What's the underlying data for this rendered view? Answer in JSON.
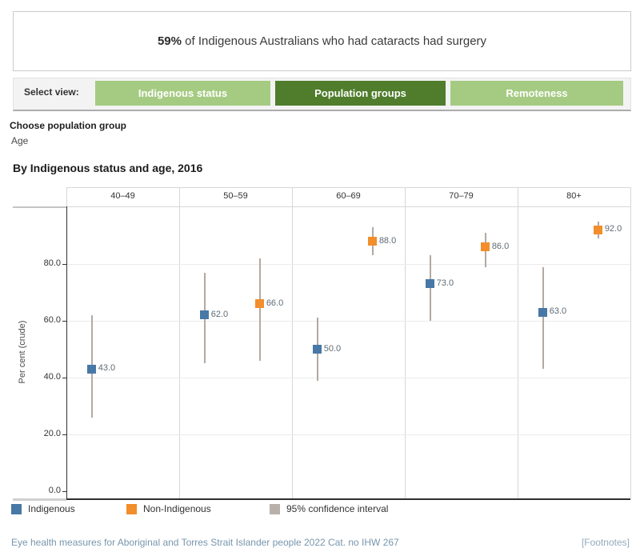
{
  "banner": {
    "highlight": "59%",
    "rest": " of Indigenous Australians who had cataracts had surgery"
  },
  "view_selector": {
    "label": "Select view:",
    "options": [
      {
        "label": "Indigenous status",
        "selected": false
      },
      {
        "label": "Population groups",
        "selected": true
      },
      {
        "label": "Remoteness",
        "selected": false
      }
    ]
  },
  "colors": {
    "button_selected": "#4f7d2c",
    "button_unselected": "#a5cb82",
    "axis": "#333333",
    "grid": "#ebebeb",
    "panel_border": "#d7d7d7"
  },
  "population_group": {
    "label": "Choose population group",
    "value": "Age"
  },
  "chart_title": "By Indigenous status and age, 2016",
  "chart_data": {
    "type": "scatter",
    "title": "By Indigenous status and age, 2016",
    "ylabel": "Per cent (crude)",
    "ylim": [
      0,
      100
    ],
    "yticks": [
      0,
      20,
      40,
      60,
      80
    ],
    "ytick_labels": [
      "0.0",
      "20.0",
      "40.0",
      "60.0",
      "80.0"
    ],
    "categories": [
      "40–49",
      "50–59",
      "60–69",
      "70–79",
      "80+"
    ],
    "series": [
      {
        "name": "Indigenous",
        "color": "#4878a5",
        "values": [
          43.0,
          62.0,
          50.0,
          73.0,
          63.0
        ],
        "labels": [
          "43.0",
          "62.0",
          "50.0",
          "73.0",
          "63.0"
        ],
        "ci_low": [
          26,
          45,
          39,
          60,
          43
        ],
        "ci_high": [
          62,
          77,
          61,
          83,
          79
        ]
      },
      {
        "name": "Non-Indigenous",
        "color": "#f28e2b",
        "values": [
          null,
          66.0,
          88.0,
          86.0,
          92.0
        ],
        "labels": [
          null,
          "66.0",
          "88.0",
          "86.0",
          "92.0"
        ],
        "ci_low": [
          null,
          46,
          83,
          79,
          89
        ],
        "ci_high": [
          null,
          82,
          93,
          91,
          95
        ]
      }
    ],
    "ci_color": "#b3a9a2",
    "grid": true,
    "legend_position": "bottom",
    "legend": [
      {
        "label": "Indigenous",
        "color": "#4878a5"
      },
      {
        "label": "Non-Indigenous",
        "color": "#f28e2b"
      },
      {
        "label": "95% confidence interval",
        "color": "#b9b0aa"
      }
    ]
  },
  "footer": {
    "source": "Eye health measures for Aboriginal and Torres Strait Islander people 2022 Cat. no IHW 267",
    "footnotes": "[Footnotes]"
  }
}
